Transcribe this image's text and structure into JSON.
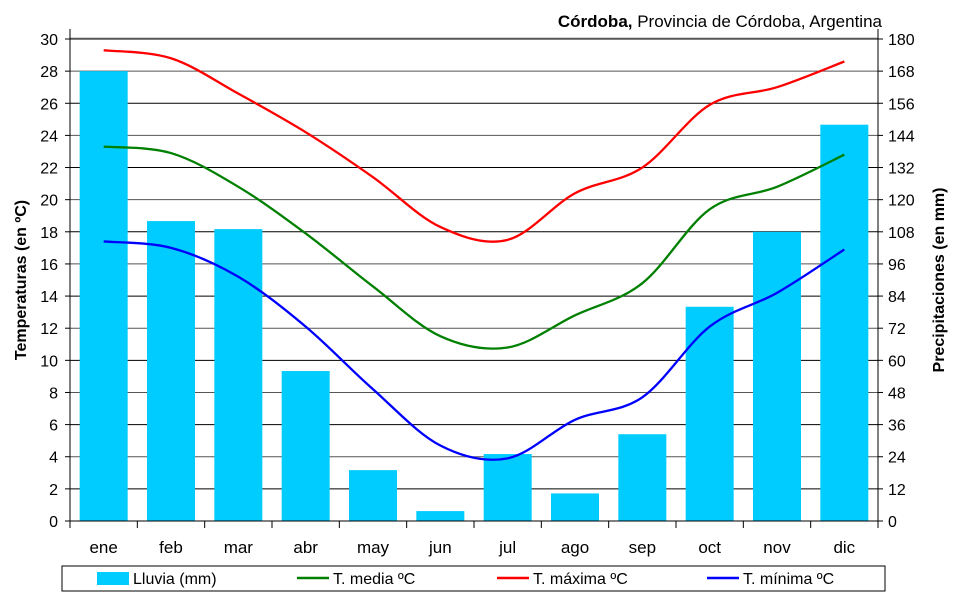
{
  "chart_data": {
    "type": "bar+line",
    "title_bold": "Córdoba,",
    "title_rest": " Provincia de Córdoba, Argentina",
    "categories": [
      "ene",
      "feb",
      "mar",
      "abr",
      "may",
      "jun",
      "jul",
      "ago",
      "sep",
      "oct",
      "nov",
      "dic"
    ],
    "ylabel_left": "Temperaturas (en ºC)",
    "ylabel_right": "Precipitaciones (en mm)",
    "ylim_left": [
      0,
      30
    ],
    "yticks_left": [
      0,
      2,
      4,
      6,
      8,
      10,
      12,
      14,
      16,
      18,
      20,
      22,
      24,
      26,
      28,
      30
    ],
    "ylim_right": [
      0,
      180
    ],
    "yticks_right": [
      0,
      12,
      24,
      36,
      48,
      60,
      72,
      84,
      96,
      108,
      120,
      132,
      144,
      156,
      168,
      180
    ],
    "grid": true,
    "legend_position": "bottom",
    "series": [
      {
        "name": "Lluvia (mm)",
        "kind": "bar",
        "axis": "right",
        "color": "#00ccff",
        "values": [
          168,
          112,
          109,
          56,
          19,
          3.7,
          25,
          10.3,
          32.4,
          80,
          108,
          148
        ]
      },
      {
        "name": "T. media ºC",
        "kind": "line",
        "axis": "left",
        "color": "#008000",
        "values": [
          23.3,
          22.9,
          20.8,
          17.9,
          14.6,
          11.5,
          10.8,
          12.8,
          14.8,
          19.4,
          20.8,
          22.8
        ]
      },
      {
        "name": "T. máxima ºC",
        "kind": "line",
        "axis": "left",
        "color": "#ff0000",
        "values": [
          29.3,
          28.8,
          26.6,
          24.2,
          21.4,
          18.3,
          17.5,
          20.4,
          22.0,
          25.9,
          27.0,
          28.6
        ]
      },
      {
        "name": "T. mínima ºC",
        "kind": "line",
        "axis": "left",
        "color": "#0000ff",
        "values": [
          17.4,
          17.0,
          15.2,
          12.1,
          8.2,
          4.7,
          3.9,
          6.3,
          7.7,
          12.1,
          14.2,
          16.9
        ]
      }
    ]
  }
}
